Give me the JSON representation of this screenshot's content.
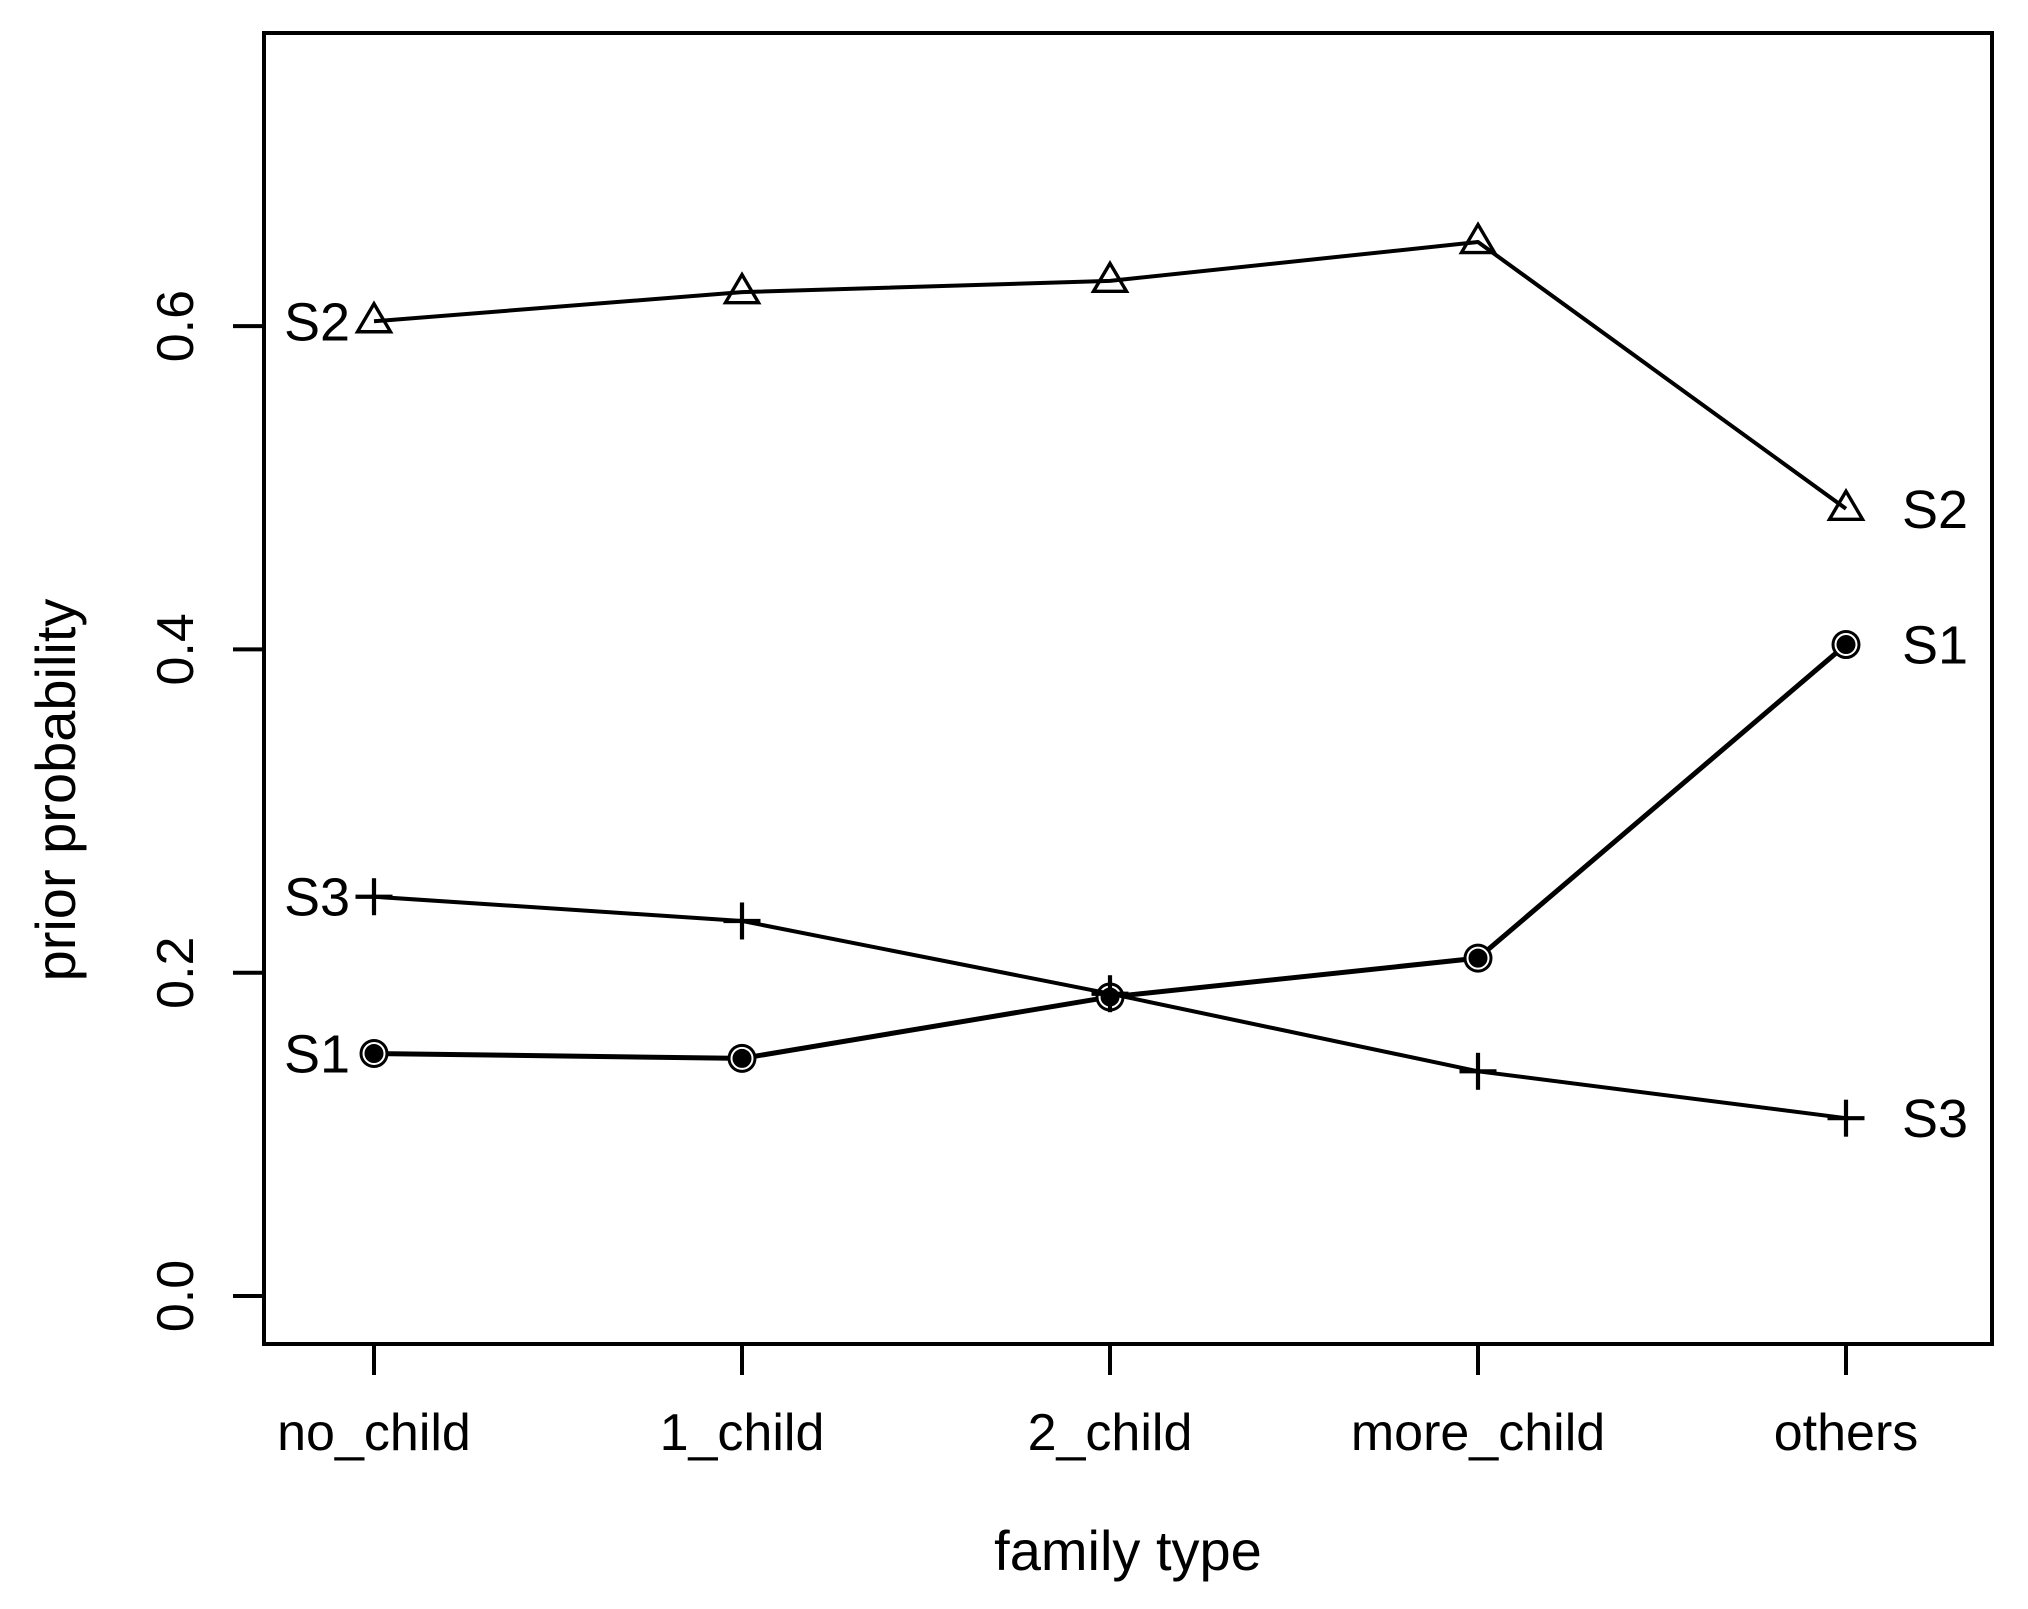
{
  "chart_data": {
    "type": "line",
    "title": "",
    "xlabel": "family type",
    "ylabel": "prior probability",
    "categories": [
      "no_child",
      "1_child",
      "2_child",
      "more_child",
      "others"
    ],
    "x": [
      1,
      2,
      3,
      4,
      5
    ],
    "y_tick_labels": [
      "0.0",
      "0.2",
      "0.4",
      "0.6"
    ],
    "y_tick_values": [
      0.0,
      0.2,
      0.4,
      0.6
    ],
    "ylim": [
      -0.03,
      0.78
    ],
    "grid": false,
    "legend_position": "inline-end-labels",
    "series": [
      {
        "name": "S1",
        "marker": "filled-circle",
        "left_label": "S1",
        "right_label": "S1",
        "values": [
          0.15,
          0.147,
          0.185,
          0.209,
          0.403
        ]
      },
      {
        "name": "S2",
        "marker": "open-triangle",
        "left_label": "S2",
        "right_label": "S2",
        "values": [
          0.603,
          0.621,
          0.628,
          0.652,
          0.487
        ]
      },
      {
        "name": "S3",
        "marker": "plus",
        "left_label": "S3",
        "right_label": "S3",
        "values": [
          0.247,
          0.232,
          0.187,
          0.139,
          0.11
        ]
      }
    ],
    "colors": {
      "foreground": "#000000",
      "background": "#ffffff"
    }
  }
}
